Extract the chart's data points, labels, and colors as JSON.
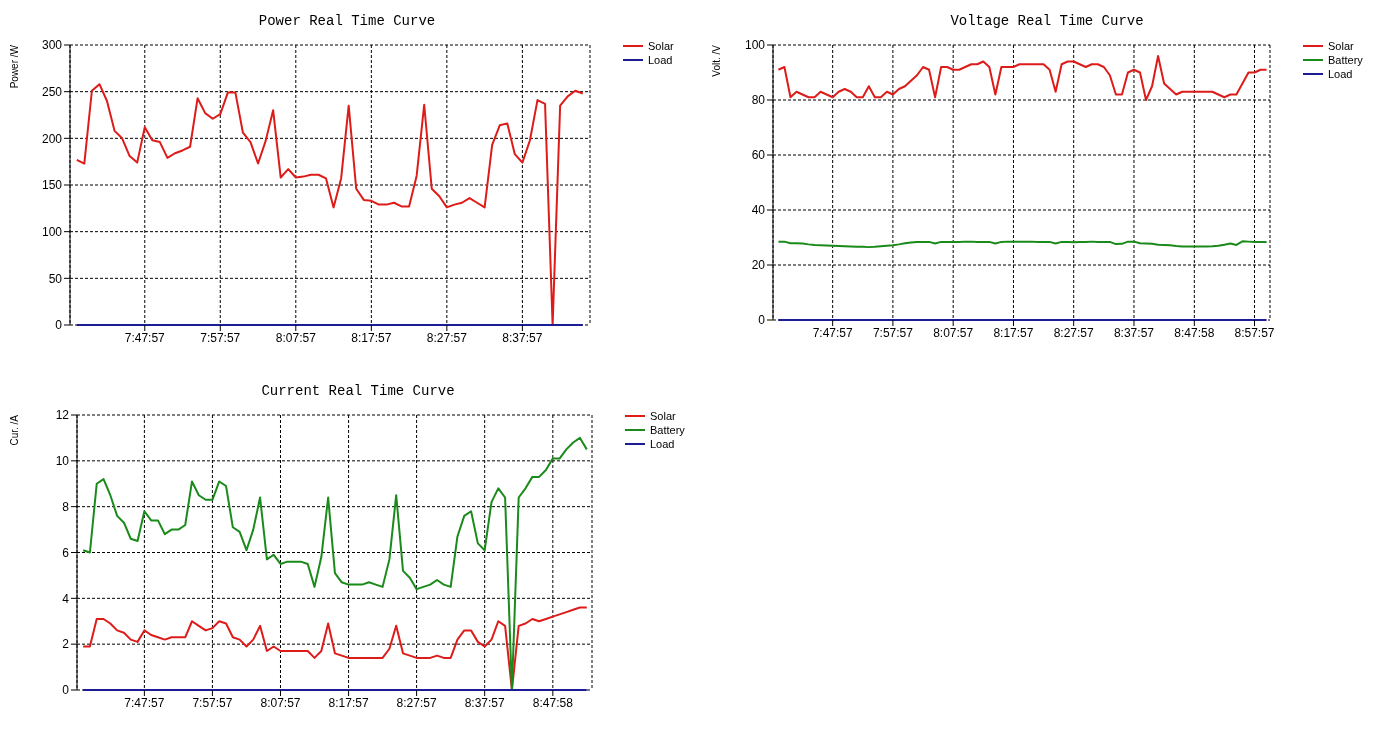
{
  "chart_data": [
    {
      "type": "line",
      "title": "Power Real Time Curve",
      "ylabel": "Power /W",
      "x": [
        7.6492,
        7.6658,
        7.6825,
        7.6992,
        7.7158,
        7.7325,
        7.7492,
        7.7658,
        7.7825,
        7.7992,
        7.8158,
        7.8325,
        7.8492,
        7.8658,
        7.8825,
        7.8992,
        7.9158,
        7.9325,
        7.9492,
        7.9658,
        7.9825,
        7.9992,
        8.0158,
        8.0325,
        8.0492,
        8.0658,
        8.0825,
        8.0992,
        8.1158,
        8.1325,
        8.1492,
        8.1658,
        8.1825,
        8.1992,
        8.2158,
        8.2325,
        8.2492,
        8.2658,
        8.2825,
        8.2992,
        8.3158,
        8.3325,
        8.3492,
        8.3658,
        8.3825,
        8.3992,
        8.4158,
        8.4325,
        8.4492,
        8.4658,
        8.4825,
        8.4992,
        8.5158,
        8.5325,
        8.5492,
        8.5658,
        8.5825,
        8.5992,
        8.6158,
        8.6325,
        8.6492,
        8.6658,
        8.6825,
        8.6992,
        8.7158,
        8.7325,
        8.7492,
        8.7658
      ],
      "series": [
        {
          "name": "Solar",
          "color": "#dd1c1a",
          "values": [
            177,
            173,
            251,
            258,
            240,
            208,
            200,
            181,
            174,
            212,
            198,
            196,
            179,
            184,
            187,
            191,
            243,
            227,
            221,
            226,
            249,
            249,
            206,
            196,
            173,
            197,
            230,
            158,
            167,
            158,
            159,
            161,
            161,
            157,
            126,
            157,
            235,
            146,
            134,
            133,
            129,
            129,
            131,
            127,
            127,
            160,
            236,
            146,
            138,
            126,
            129,
            131,
            136,
            131,
            126,
            193,
            214,
            216,
            183,
            174,
            198,
            241,
            237,
            0,
            235,
            245,
            251,
            248
          ]
        },
        {
          "name": "Load",
          "color": "#1c1c96",
          "values": [
            0,
            0,
            0,
            0,
            0,
            0,
            0,
            0,
            0,
            0,
            0,
            0,
            0,
            0,
            0,
            0,
            0,
            0,
            0,
            0,
            0,
            0,
            0,
            0,
            0,
            0,
            0,
            0,
            0,
            0,
            0,
            0,
            0,
            0,
            0,
            0,
            0,
            0,
            0,
            0,
            0,
            0,
            0,
            0,
            0,
            0,
            0,
            0,
            0,
            0,
            0,
            0,
            0,
            0,
            0,
            0,
            0,
            0,
            0,
            0,
            0,
            0,
            0,
            0,
            0,
            0,
            0,
            0
          ]
        }
      ],
      "xlim": [
        7.6342,
        8.7817
      ],
      "xticks": [
        {
          "value": 7.7992,
          "label": "7:47:57"
        },
        {
          "value": 7.9658,
          "label": "7:57:57"
        },
        {
          "value": 8.1325,
          "label": "8:07:57"
        },
        {
          "value": 8.2992,
          "label": "8:17:57"
        },
        {
          "value": 8.4658,
          "label": "8:27:57"
        },
        {
          "value": 8.6325,
          "label": "8:37:57"
        }
      ],
      "ylim": [
        0,
        300
      ],
      "yticks": [
        0,
        50,
        100,
        150,
        200,
        250,
        300
      ],
      "grid": true,
      "legend": "right"
    },
    {
      "type": "line",
      "title": "Voltage Real Time Curve",
      "ylabel": "Volt. /V",
      "x": [
        7.6492,
        7.6658,
        7.6825,
        7.6992,
        7.7158,
        7.7325,
        7.7492,
        7.7658,
        7.7825,
        7.7992,
        7.8158,
        7.8325,
        7.8492,
        7.8658,
        7.8825,
        7.8992,
        7.9158,
        7.9325,
        7.9492,
        7.9658,
        7.9825,
        7.9992,
        8.0158,
        8.0325,
        8.0492,
        8.0658,
        8.0825,
        8.0992,
        8.1158,
        8.1325,
        8.1492,
        8.1658,
        8.1825,
        8.1992,
        8.2158,
        8.2325,
        8.2492,
        8.2658,
        8.2825,
        8.2992,
        8.3158,
        8.3325,
        8.3492,
        8.3658,
        8.3825,
        8.3992,
        8.4158,
        8.4325,
        8.4492,
        8.4658,
        8.4825,
        8.4992,
        8.5158,
        8.5325,
        8.5492,
        8.5658,
        8.5825,
        8.5992,
        8.6158,
        8.6325,
        8.6492,
        8.6658,
        8.6825,
        8.6992,
        8.7158,
        8.7325,
        8.7492,
        8.7658,
        8.7825,
        8.7992,
        8.8158,
        8.8325,
        8.8492,
        8.8658,
        8.8825,
        8.8992,
        8.9158,
        8.9325,
        8.9492,
        8.9658,
        8.9825,
        8.9992
      ],
      "series": [
        {
          "name": "Solar",
          "color": "#dd1c1a",
          "values": [
            91,
            92,
            81,
            83,
            82,
            81,
            81,
            83,
            82,
            81,
            83,
            84,
            83,
            81,
            81,
            85,
            81,
            81,
            83,
            82,
            84,
            85,
            87,
            89,
            92,
            91,
            81,
            92,
            92,
            91,
            91,
            92,
            93,
            93,
            94,
            92,
            82,
            92,
            92,
            92,
            93,
            93,
            93,
            93,
            93,
            91,
            83,
            93,
            94,
            94,
            93,
            92,
            93,
            93,
            92,
            89,
            82,
            82,
            90,
            91,
            90,
            80,
            85,
            96,
            86,
            84,
            82,
            83,
            83,
            83,
            83,
            83,
            83,
            82,
            81,
            82,
            82,
            86,
            90,
            90,
            91,
            91
          ]
        },
        {
          "name": "Battery",
          "color": "#1a8a1a",
          "values": [
            28.5,
            28.5,
            27.9,
            27.9,
            27.8,
            27.5,
            27.3,
            27.2,
            27.1,
            27.0,
            26.9,
            26.8,
            26.7,
            26.6,
            26.6,
            26.5,
            26.6,
            26.8,
            27.0,
            27.2,
            27.5,
            27.9,
            28.2,
            28.4,
            28.4,
            28.4,
            27.8,
            28.4,
            28.4,
            28.4,
            28.4,
            28.5,
            28.5,
            28.4,
            28.4,
            28.4,
            27.8,
            28.4,
            28.5,
            28.5,
            28.5,
            28.5,
            28.5,
            28.4,
            28.4,
            28.4,
            27.8,
            28.4,
            28.4,
            28.3,
            28.4,
            28.4,
            28.5,
            28.4,
            28.4,
            28.4,
            27.6,
            27.7,
            28.5,
            28.5,
            27.9,
            27.8,
            27.7,
            27.4,
            27.3,
            27.2,
            26.9,
            26.7,
            26.7,
            26.7,
            26.7,
            26.7,
            26.8,
            27.0,
            27.4,
            27.8,
            27.3,
            28.6,
            28.5,
            28.4,
            28.4,
            28.4
          ]
        },
        {
          "name": "Load",
          "color": "#1c1c96",
          "values": [
            0,
            0,
            0,
            0,
            0,
            0,
            0,
            0,
            0,
            0,
            0,
            0,
            0,
            0,
            0,
            0,
            0,
            0,
            0,
            0,
            0,
            0,
            0,
            0,
            0,
            0,
            0,
            0,
            0,
            0,
            0,
            0,
            0,
            0,
            0,
            0,
            0,
            0,
            0,
            0,
            0,
            0,
            0,
            0,
            0,
            0,
            0,
            0,
            0,
            0,
            0,
            0,
            0,
            0,
            0,
            0,
            0,
            0,
            0,
            0,
            0,
            0,
            0,
            0,
            0,
            0,
            0,
            0,
            0,
            0,
            0,
            0,
            0,
            0,
            0,
            0,
            0,
            0,
            0,
            0,
            0,
            0
          ]
        }
      ],
      "xlim": [
        7.6342,
        9.0087
      ],
      "xticks": [
        {
          "value": 7.7992,
          "label": "7:47:57"
        },
        {
          "value": 7.9658,
          "label": "7:57:57"
        },
        {
          "value": 8.1325,
          "label": "8:07:57"
        },
        {
          "value": 8.2992,
          "label": "8:17:57"
        },
        {
          "value": 8.4658,
          "label": "8:27:57"
        },
        {
          "value": 8.6325,
          "label": "8:37:57"
        },
        {
          "value": 8.7994,
          "label": "8:47:58"
        },
        {
          "value": 8.9658,
          "label": "8:57:57"
        }
      ],
      "ylim": [
        0,
        100
      ],
      "yticks": [
        0,
        20,
        40,
        60,
        80,
        100
      ],
      "grid": true,
      "legend": "right"
    },
    {
      "type": "line",
      "title": "Current Real Time Curve",
      "ylabel": "Cur. /A",
      "x": [
        7.6492,
        7.6658,
        7.6825,
        7.6992,
        7.7158,
        7.7325,
        7.7492,
        7.7658,
        7.7825,
        7.7992,
        7.8158,
        7.8325,
        7.8492,
        7.8658,
        7.8825,
        7.8992,
        7.9158,
        7.9325,
        7.9492,
        7.9658,
        7.9825,
        7.9992,
        8.0158,
        8.0325,
        8.0492,
        8.0658,
        8.0825,
        8.0992,
        8.1158,
        8.1325,
        8.1492,
        8.1658,
        8.1825,
        8.1992,
        8.2158,
        8.2325,
        8.2492,
        8.2658,
        8.2825,
        8.2992,
        8.3158,
        8.3325,
        8.3492,
        8.3658,
        8.3825,
        8.3992,
        8.4158,
        8.4325,
        8.4492,
        8.4658,
        8.4825,
        8.4992,
        8.5158,
        8.5325,
        8.5492,
        8.5658,
        8.5825,
        8.5992,
        8.6158,
        8.6325,
        8.6492,
        8.6658,
        8.6825,
        8.6992,
        8.7158,
        8.7325,
        8.7492,
        8.7658,
        8.7825,
        8.7992,
        8.8158,
        8.8325,
        8.8492,
        8.8658,
        8.8825
      ],
      "series": [
        {
          "name": "Solar",
          "color": "#dd1c1a",
          "values": [
            1.9,
            1.9,
            3.1,
            3.1,
            2.9,
            2.6,
            2.5,
            2.2,
            2.1,
            2.6,
            2.4,
            2.3,
            2.2,
            2.3,
            2.3,
            2.3,
            3.0,
            2.8,
            2.6,
            2.7,
            3.0,
            2.9,
            2.3,
            2.2,
            1.9,
            2.2,
            2.8,
            1.7,
            1.9,
            1.7,
            1.7,
            1.7,
            1.7,
            1.7,
            1.4,
            1.7,
            2.9,
            1.6,
            1.5,
            1.4,
            1.4,
            1.4,
            1.4,
            1.4,
            1.4,
            1.8,
            2.8,
            1.6,
            1.5,
            1.4,
            1.4,
            1.4,
            1.5,
            1.4,
            1.4,
            2.2,
            2.6,
            2.6,
            2.1,
            1.9,
            2.2,
            3.0,
            2.8,
            0,
            2.8,
            2.9,
            3.1,
            3.0,
            3.1,
            3.2,
            3.3,
            3.4,
            3.5,
            3.6,
            3.6
          ]
        },
        {
          "name": "Battery",
          "color": "#1a8a1a",
          "values": [
            6.1,
            6.0,
            9.0,
            9.2,
            8.5,
            7.6,
            7.3,
            6.6,
            6.5,
            7.8,
            7.4,
            7.4,
            6.8,
            7.0,
            7.0,
            7.2,
            9.1,
            8.5,
            8.3,
            8.3,
            9.1,
            8.9,
            7.1,
            6.9,
            6.1,
            7.0,
            8.4,
            5.7,
            5.9,
            5.5,
            5.6,
            5.6,
            5.6,
            5.5,
            4.5,
            5.8,
            8.4,
            5.1,
            4.7,
            4.6,
            4.6,
            4.6,
            4.7,
            4.6,
            4.5,
            5.7,
            8.5,
            5.2,
            4.9,
            4.4,
            4.5,
            4.6,
            4.8,
            4.6,
            4.5,
            6.7,
            7.6,
            7.8,
            6.4,
            6.1,
            8.2,
            8.8,
            8.4,
            0,
            8.4,
            8.8,
            9.3,
            9.3,
            9.6,
            10.1,
            10.1,
            10.5,
            10.8,
            11.0,
            10.5
          ]
        },
        {
          "name": "Load",
          "color": "#1c1c96",
          "values": [
            0,
            0,
            0,
            0,
            0,
            0,
            0,
            0,
            0,
            0,
            0,
            0,
            0,
            0,
            0,
            0,
            0,
            0,
            0,
            0,
            0,
            0,
            0,
            0,
            0,
            0,
            0,
            0,
            0,
            0,
            0,
            0,
            0,
            0,
            0,
            0,
            0,
            0,
            0,
            0,
            0,
            0,
            0,
            0,
            0,
            0,
            0,
            0,
            0,
            0,
            0,
            0,
            0,
            0,
            0,
            0,
            0,
            0,
            0,
            0,
            0,
            0,
            0,
            0,
            0,
            0,
            0,
            0,
            0,
            0,
            0,
            0,
            0,
            0,
            0
          ]
        }
      ],
      "xlim": [
        7.6342,
        8.8953
      ],
      "xticks": [
        {
          "value": 7.7992,
          "label": "7:47:57"
        },
        {
          "value": 7.9658,
          "label": "7:57:57"
        },
        {
          "value": 8.1325,
          "label": "8:07:57"
        },
        {
          "value": 8.2992,
          "label": "8:17:57"
        },
        {
          "value": 8.4658,
          "label": "8:27:57"
        },
        {
          "value": 8.6325,
          "label": "8:37:57"
        },
        {
          "value": 8.7994,
          "label": "8:47:58"
        }
      ],
      "ylim": [
        0,
        12
      ],
      "yticks": [
        0,
        2,
        4,
        6,
        8,
        10,
        12
      ],
      "grid": true,
      "legend": "right"
    }
  ]
}
